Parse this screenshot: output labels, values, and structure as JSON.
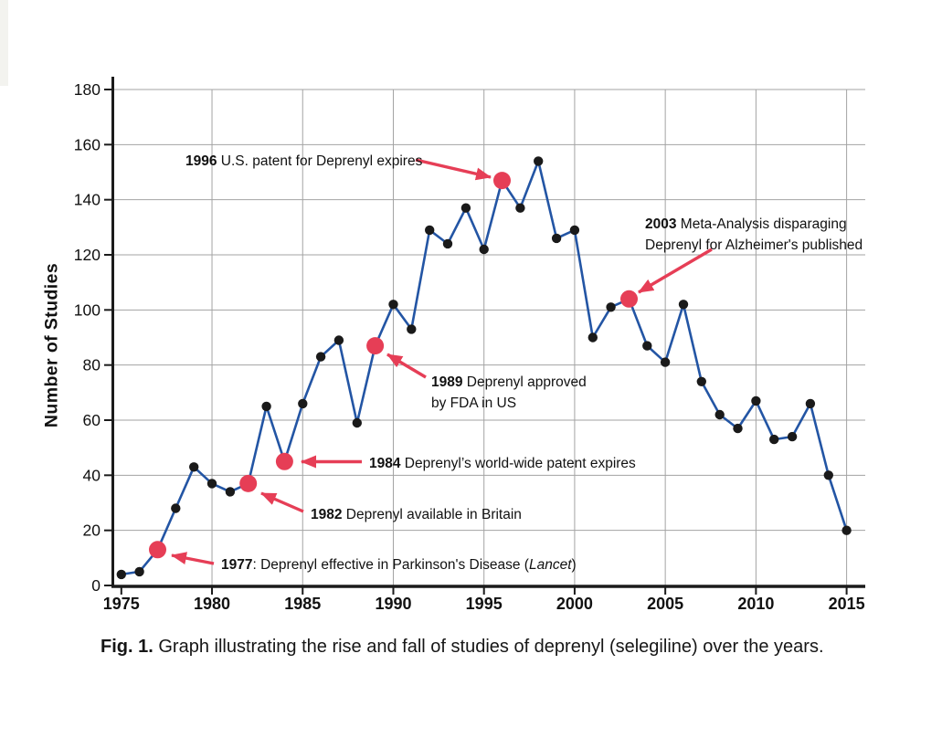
{
  "figure": {
    "caption_bold": "Fig. 1.",
    "caption_text": " Graph illustrating the rise and fall of studies of deprenyl (selegiline) over the years."
  },
  "chart_data": {
    "type": "line",
    "title": "",
    "xlabel": "",
    "ylabel": "Number of Studies",
    "ylim": [
      0,
      180
    ],
    "grid": true,
    "legend": "none",
    "yticks": [
      0,
      20,
      40,
      60,
      80,
      100,
      120,
      140,
      160,
      180
    ],
    "xticks": [
      1975,
      1980,
      1985,
      1990,
      1995,
      2000,
      2005,
      2010,
      2015
    ],
    "x": [
      1975,
      1976,
      1977,
      1978,
      1979,
      1980,
      1981,
      1982,
      1983,
      1984,
      1985,
      1986,
      1987,
      1988,
      1989,
      1990,
      1991,
      1992,
      1993,
      1994,
      1995,
      1996,
      1997,
      1998,
      1999,
      2000,
      2001,
      2002,
      2003,
      2004,
      2005,
      2006,
      2007,
      2008,
      2009,
      2010,
      2011,
      2012,
      2013,
      2014,
      2015
    ],
    "values": [
      4,
      5,
      13,
      28,
      43,
      37,
      34,
      37,
      65,
      45,
      66,
      83,
      89,
      59,
      87,
      102,
      93,
      129,
      124,
      137,
      122,
      147,
      137,
      154,
      126,
      129,
      90,
      101,
      104,
      87,
      81,
      102,
      74,
      62,
      57,
      67,
      53,
      54,
      66,
      40,
      20
    ],
    "highlighted_years": [
      1977,
      1982,
      1984,
      1989,
      1996,
      2003
    ],
    "line_color": "#2355a4",
    "point_color": "#1a1a1a",
    "highlight_color": "#e63e56",
    "annotations": [
      {
        "year": "1996",
        "text": " U.S. patent for Deprenyl expires"
      },
      {
        "year": "2003",
        "text": " Meta-Analysis disparaging Deprenyl for Alzheimer's published"
      },
      {
        "year": "1989",
        "text": " Deprenyl approved by FDA in US"
      },
      {
        "year": "1984",
        "text": " Deprenyl’s world-wide patent expires"
      },
      {
        "year": "1982",
        "text": " Deprenyl available in Britain"
      },
      {
        "year": "1977",
        "text": ": Deprenyl effective in Parkinson's Disease (",
        "italic": "Lancet",
        "tail": ")"
      }
    ]
  }
}
